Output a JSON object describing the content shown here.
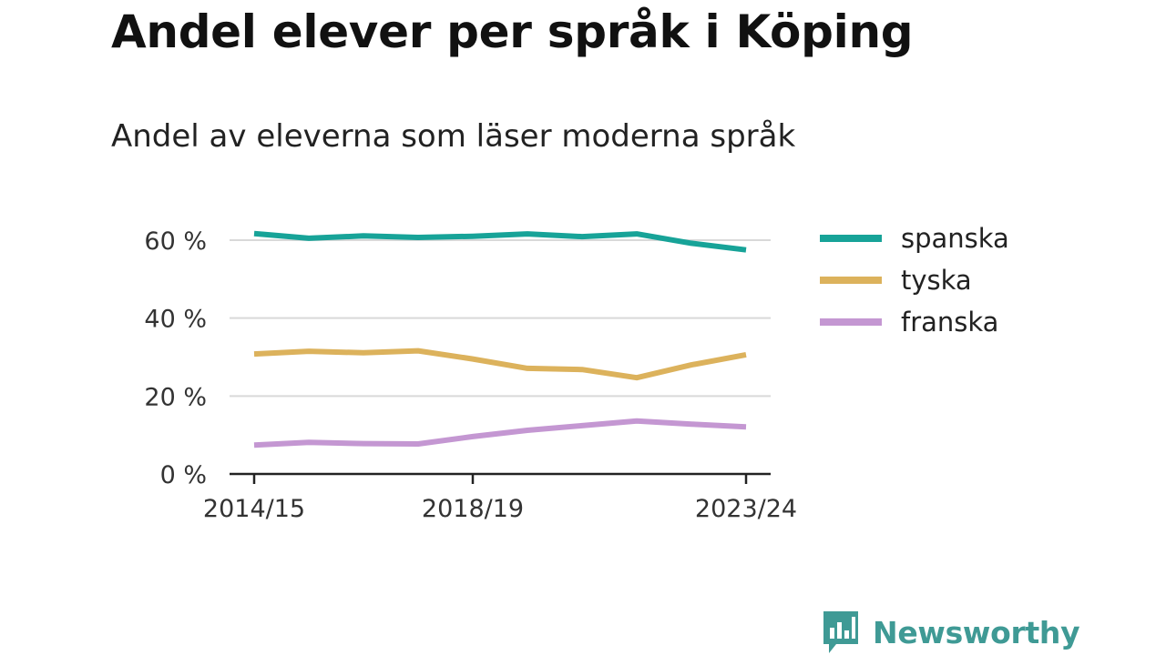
{
  "title": "Andel elever per språk i Köping",
  "subtitle": "Andel av eleverna som läser moderna språk",
  "brand": {
    "name": "Newsworthy",
    "icon": "bar-chart-speech-bubble-icon",
    "color": "#3f9a95"
  },
  "chart_data": {
    "type": "line",
    "x": [
      "2014/15",
      "2015/16",
      "2016/17",
      "2017/18",
      "2018/19",
      "2019/20",
      "2020/21",
      "2021/22",
      "2022/23",
      "2023/24"
    ],
    "x_tick_labels": [
      "2014/15",
      "2018/19",
      "2023/24"
    ],
    "y_ticks": [
      0,
      20,
      40,
      60
    ],
    "y_tick_labels": [
      "0 %",
      "20 %",
      "40 %",
      "60 %"
    ],
    "ylim": [
      0,
      62
    ],
    "grid": true,
    "legend_position": "right",
    "series": [
      {
        "name": "spanska",
        "color": "#17a398",
        "values": [
          61.7,
          60.5,
          61.1,
          60.7,
          61.0,
          61.6,
          60.9,
          61.6,
          59.2,
          57.5
        ]
      },
      {
        "name": "tyska",
        "color": "#dcb25c",
        "values": [
          30.8,
          31.5,
          31.1,
          31.6,
          29.5,
          27.1,
          26.8,
          24.7,
          28.0,
          30.6
        ]
      },
      {
        "name": "franska",
        "color": "#c497d2",
        "values": [
          7.4,
          8.1,
          7.8,
          7.7,
          9.6,
          11.2,
          12.4,
          13.6,
          12.8,
          12.1
        ]
      }
    ]
  }
}
